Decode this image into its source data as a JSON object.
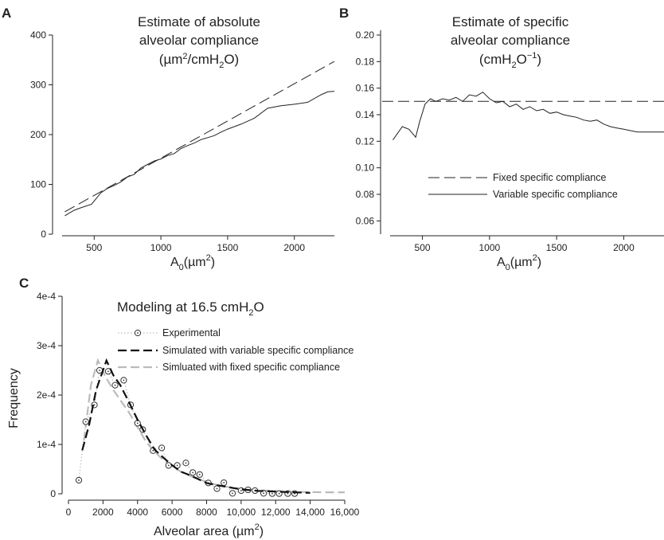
{
  "chart_data": [
    {
      "panel": "A",
      "type": "line",
      "title_lines": [
        "Estimate of absolute",
        "alveolar compliance"
      ],
      "title_unit": {
        "pre": "(µm",
        "sup": "2",
        "mid": "/cmH",
        "sub": "2",
        "post": "O)"
      },
      "xlabel": {
        "pre": "A",
        "sub": "0",
        "mid": "(µm",
        "sup": "2",
        "post": ")"
      },
      "ylabel": "",
      "xlim": [
        200,
        2300
      ],
      "ylim": [
        0,
        400
      ],
      "xticks": [
        "500",
        "1000",
        "1500",
        "2000"
      ],
      "xtick_values": [
        500,
        1000,
        1500,
        2000
      ],
      "yticks": [
        "0",
        "100",
        "200",
        "300",
        "400"
      ],
      "ytick_values": [
        0,
        100,
        200,
        300,
        400
      ],
      "series": [
        {
          "style": "dashed",
          "x": [
            280,
            2300
          ],
          "y": [
            45,
            347
          ]
        },
        {
          "style": "solid",
          "x": [
            280,
            350,
            400,
            480,
            550,
            600,
            650,
            700,
            750,
            800,
            850,
            900,
            950,
            1000,
            1050,
            1100,
            1150,
            1200,
            1250,
            1300,
            1350,
            1400,
            1450,
            1500,
            1600,
            1700,
            1800,
            1900,
            2000,
            2100,
            2200,
            2250,
            2300
          ],
          "y": [
            37,
            48,
            53,
            60,
            83,
            92,
            98,
            105,
            115,
            120,
            133,
            140,
            147,
            151,
            158,
            162,
            172,
            178,
            183,
            190,
            194,
            198,
            205,
            211,
            221,
            233,
            253,
            258,
            261,
            265,
            280,
            286,
            287
          ]
        }
      ]
    },
    {
      "panel": "B",
      "type": "line",
      "title_lines": [
        "Estimate of specific",
        "alveolar compliance"
      ],
      "title_unit": {
        "pre": "(cmH",
        "sub": "2",
        "mid": "O",
        "sup": "−1",
        "post": ")"
      },
      "xlabel": {
        "pre": "A",
        "sub": "0",
        "mid": "(µm",
        "sup": "2",
        "post": ")"
      },
      "ylabel": "",
      "xlim": [
        200,
        2300
      ],
      "ylim": [
        0.05,
        0.2
      ],
      "xticks": [
        "500",
        "1000",
        "1500",
        "2000"
      ],
      "xtick_values": [
        500,
        1000,
        1500,
        2000
      ],
      "yticks": [
        "0.06",
        "0.08",
        "0.10",
        "0.12",
        "0.14",
        "0.16",
        "0.18",
        "0.20"
      ],
      "ytick_values": [
        0.06,
        0.08,
        0.1,
        0.12,
        0.14,
        0.16,
        0.18,
        0.2
      ],
      "legend": [
        "Fixed specific compliance",
        "Variable specific compliance"
      ],
      "series": [
        {
          "name": "Fixed specific compliance",
          "style": "dashed",
          "x": [
            200,
            2300
          ],
          "y": [
            0.15,
            0.15
          ]
        },
        {
          "name": "Variable specific compliance",
          "style": "solid",
          "x": [
            280,
            350,
            400,
            450,
            480,
            520,
            560,
            600,
            650,
            700,
            750,
            800,
            850,
            900,
            950,
            1000,
            1050,
            1100,
            1150,
            1200,
            1250,
            1300,
            1350,
            1400,
            1450,
            1500,
            1550,
            1600,
            1650,
            1700,
            1750,
            1800,
            1850,
            1900,
            1950,
            2000,
            2050,
            2100,
            2200,
            2300
          ],
          "y": [
            0.121,
            0.131,
            0.129,
            0.123,
            0.135,
            0.148,
            0.152,
            0.15,
            0.152,
            0.151,
            0.153,
            0.15,
            0.155,
            0.154,
            0.157,
            0.152,
            0.149,
            0.15,
            0.146,
            0.148,
            0.144,
            0.146,
            0.143,
            0.144,
            0.141,
            0.142,
            0.14,
            0.139,
            0.138,
            0.136,
            0.135,
            0.136,
            0.133,
            0.131,
            0.13,
            0.129,
            0.128,
            0.127,
            0.127,
            0.127
          ]
        }
      ]
    },
    {
      "panel": "C",
      "type": "line",
      "title": {
        "pre": "Modeling at 16.5 cmH",
        "sub": "2",
        "post": "O"
      },
      "xlabel": {
        "pre": "Alveolar area (µm",
        "sup": "2",
        "post": ")"
      },
      "ylabel": "Frequency",
      "xlim": [
        0,
        16000
      ],
      "ylim": [
        0,
        0.0004
      ],
      "xticks": [
        "0",
        "2000",
        "4000",
        "6000",
        "8000",
        "10,000",
        "12,000",
        "14,000",
        "16,000"
      ],
      "xtick_values": [
        0,
        2000,
        4000,
        6000,
        8000,
        10000,
        12000,
        14000,
        16000
      ],
      "yticks": [
        "0",
        "1e-4",
        "2e-4",
        "3e-4",
        "4e-4"
      ],
      "ytick_values": [
        0,
        0.0001,
        0.0002,
        0.0003,
        0.0004
      ],
      "legend": [
        "Experimental",
        "Simulated  with variable specific compliance",
        "Simluated  with fixed specific compliance"
      ],
      "series": [
        {
          "name": "Experimental",
          "style": "dotted-circles",
          "x": [
            600,
            1000,
            1500,
            1800,
            2300,
            2700,
            3200,
            3600,
            4000,
            4300,
            4900,
            5400,
            5800,
            6300,
            6800,
            7200,
            7600,
            8100,
            8600,
            9000,
            9500,
            10000,
            10400,
            10800,
            11300,
            11800,
            12200,
            12700,
            13100
          ],
          "y": [
            2.75e-05,
            0.000146,
            0.00018,
            0.00025,
            0.000248,
            0.00022,
            0.00023,
            0.00018,
            0.000143,
            0.00013,
            8.75e-05,
            9.3e-05,
            5.75e-05,
            5.75e-05,
            6.25e-05,
            4.3e-05,
            3.9e-05,
            2.2e-05,
            1.05e-05,
            2.25e-05,
            1e-06,
            6.5e-06,
            8e-06,
            6.5e-06,
            1e-06,
            5e-07,
            5e-07,
            5e-07,
            5e-07
          ]
        },
        {
          "name": "Simulated  with variable specific compliance",
          "style": "dashed-black",
          "x": [
            800,
            1200,
            1600,
            2200,
            2600,
            3000,
            3500,
            4000,
            4500,
            5000,
            5500,
            6000,
            6500,
            7000,
            7500,
            8000,
            8500,
            9000,
            9500,
            10000,
            10500,
            11000,
            12000,
            13000,
            14000
          ],
          "y": [
            8.8e-05,
            0.00014,
            0.00021,
            0.00027,
            0.00024,
            0.00022,
            0.000186,
            0.00015,
            0.000118,
            8.9e-05,
            7.3e-05,
            5.8e-05,
            4.5e-05,
            3.8e-05,
            3e-05,
            2.2e-05,
            1.8e-05,
            1.5e-05,
            1.2e-05,
            9e-06,
            7.5e-06,
            6e-06,
            4.5e-06,
            3e-06,
            2e-06
          ]
        },
        {
          "name": "Simluated  with fixed specific compliance",
          "style": "dashed-gray",
          "x": [
            900,
            1300,
            1700,
            2100,
            2600,
            3000,
            3500,
            4000,
            4500,
            5000,
            5500,
            6000,
            6500,
            7000,
            7500,
            8000,
            8500,
            9000,
            10000,
            11000,
            12000,
            13000,
            14000,
            15000,
            16000
          ],
          "y": [
            0.000108,
            0.00022,
            0.00027,
            0.00024,
            0.00021,
            0.00019,
            0.000165,
            0.000135,
            0.000105,
            8.5e-05,
            6.8e-05,
            5.6e-05,
            4.5e-05,
            3.7e-05,
            3e-05,
            2.4e-05,
            1.9e-05,
            1.5e-05,
            1e-05,
            7.5e-06,
            5.5e-06,
            4e-06,
            3.5e-06,
            3e-06,
            3e-06
          ]
        }
      ]
    }
  ]
}
